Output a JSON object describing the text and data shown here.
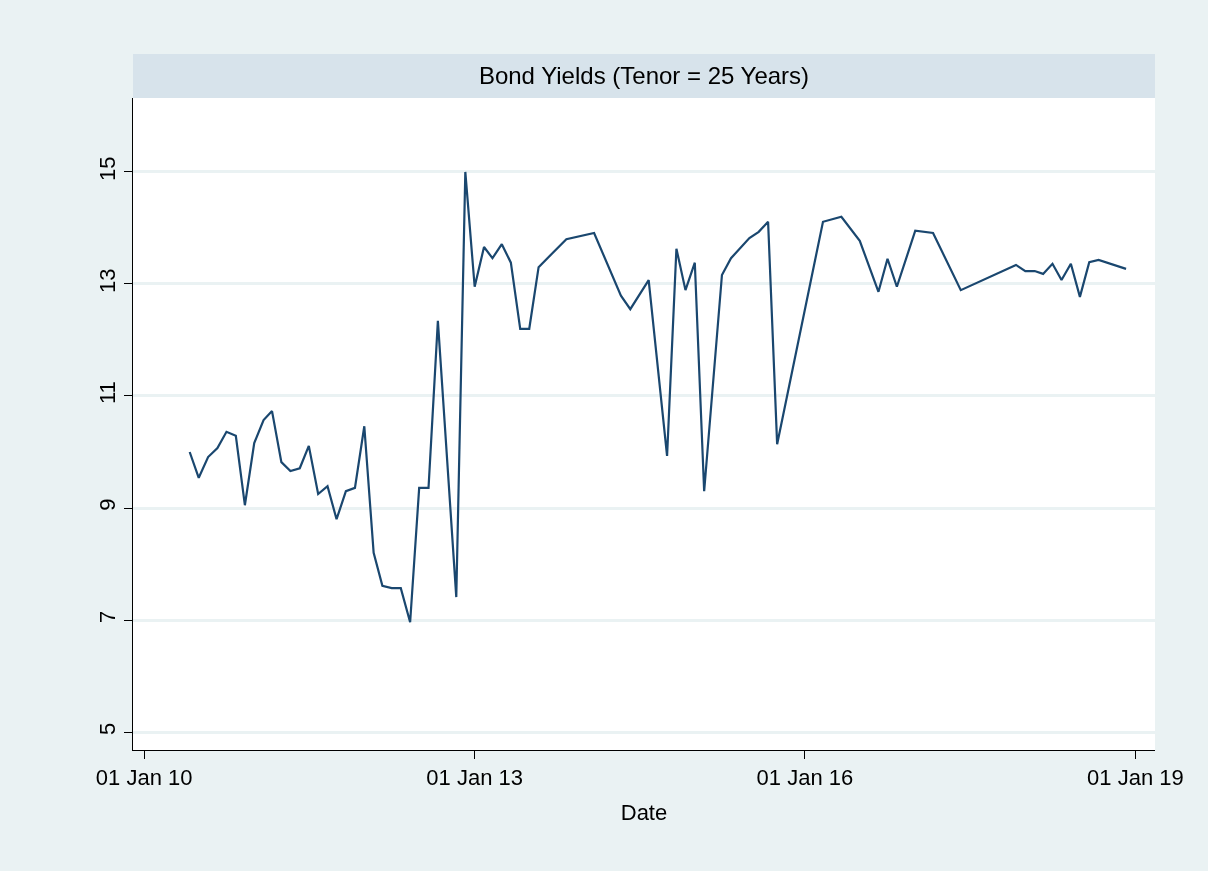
{
  "chart_data": {
    "type": "line",
    "title": "Bond Yields (Tenor = 25 Years)",
    "xlabel": "Date",
    "x": [
      "2010-06",
      "2010-07",
      "2010-08",
      "2010-09",
      "2010-10",
      "2010-11",
      "2010-12",
      "2011-01",
      "2011-02",
      "2011-03",
      "2011-04",
      "2011-05",
      "2011-06",
      "2011-07",
      "2011-08",
      "2011-09",
      "2011-10",
      "2011-11",
      "2011-12",
      "2012-01",
      "2012-02",
      "2012-03",
      "2012-04",
      "2012-05",
      "2012-06",
      "2012-07",
      "2012-08",
      "2012-09",
      "2012-11",
      "2012-12",
      "2013-01",
      "2013-02",
      "2013-03",
      "2013-04",
      "2013-05",
      "2013-06",
      "2013-07",
      "2013-08",
      "2013-11",
      "2014-02",
      "2014-05",
      "2014-06",
      "2014-08",
      "2014-10",
      "2014-11",
      "2014-12",
      "2015-01",
      "2015-02",
      "2015-04",
      "2015-05",
      "2015-07",
      "2015-08",
      "2015-09",
      "2015-10",
      "2016-03",
      "2016-05",
      "2016-07",
      "2016-09",
      "2016-10",
      "2016-11",
      "2017-01",
      "2017-03",
      "2017-06",
      "2017-12",
      "2018-01",
      "2018-02",
      "2018-03",
      "2018-04",
      "2018-05",
      "2018-06",
      "2018-07",
      "2018-08",
      "2018-09",
      "2018-12"
    ],
    "series": [
      {
        "color": "#1a476f",
        "values": [
          10.0,
          9.54,
          9.91,
          10.07,
          10.36,
          10.29,
          9.05,
          10.16,
          10.57,
          10.73,
          9.82,
          9.66,
          9.71,
          10.11,
          9.25,
          9.39,
          8.8,
          9.3,
          9.36,
          10.46,
          8.2,
          7.61,
          7.57,
          7.57,
          6.96,
          9.36,
          9.36,
          12.34,
          7.41,
          15.0,
          12.95,
          13.66,
          13.46,
          13.71,
          13.38,
          12.2,
          12.2,
          13.3,
          13.8,
          13.91,
          12.79,
          12.55,
          13.07,
          9.93,
          13.63,
          12.89,
          13.38,
          9.3,
          13.16,
          13.46,
          13.82,
          13.93,
          14.11,
          10.14,
          14.11,
          14.2,
          13.77,
          12.86,
          13.45,
          12.95,
          13.95,
          13.91,
          12.89,
          13.34,
          13.23,
          13.23,
          13.18,
          13.36,
          13.07,
          13.36,
          12.77,
          13.39,
          13.43,
          13.27
        ]
      }
    ],
    "xlim": [
      "2009-11-25",
      "2019-03-07"
    ],
    "xticks": [
      {
        "value": "2010-01-01",
        "label": "01 Jan 10"
      },
      {
        "value": "2013-01-01",
        "label": "01 Jan 13"
      },
      {
        "value": "2016-01-01",
        "label": "01 Jan 16"
      },
      {
        "value": "2019-01-01",
        "label": "01 Jan 19"
      }
    ],
    "ylim": [
      4.68,
      16.32
    ],
    "yticks": [
      5,
      7,
      9,
      11,
      13,
      15
    ],
    "grid": "y",
    "marker": "none",
    "line_style": "solid"
  }
}
